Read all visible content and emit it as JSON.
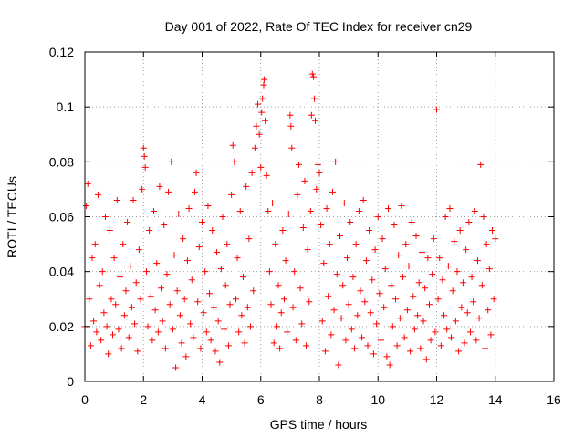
{
  "chart_data": {
    "type": "scatter",
    "title": "Day 001 of 2022, Rate Of TEC Index for receiver cn29",
    "xlabel": "GPS time / hours",
    "ylabel": "ROTI / TECUs",
    "xlim": [
      0,
      16
    ],
    "ylim": [
      0,
      0.12
    ],
    "x_ticks": [
      0,
      2,
      4,
      6,
      8,
      10,
      12,
      14,
      16
    ],
    "y_ticks": [
      0,
      0.02,
      0.04,
      0.06,
      0.08,
      0.1,
      0.12
    ],
    "x_tick_labels": [
      "0",
      "2",
      "4",
      "6",
      "8",
      "10",
      "12",
      "14",
      "16"
    ],
    "y_tick_labels": [
      "0",
      "0.02",
      "0.04",
      "0.06",
      "0.08",
      "0.1",
      "0.12"
    ],
    "grid": true,
    "marker": "+",
    "color": "#ff0000",
    "series": [
      {
        "name": "ROTI",
        "points": [
          [
            0.0,
            0.02
          ],
          [
            0.05,
            0.064
          ],
          [
            0.1,
            0.072
          ],
          [
            0.15,
            0.03
          ],
          [
            0.2,
            0.013
          ],
          [
            0.25,
            0.045
          ],
          [
            0.3,
            0.022
          ],
          [
            0.35,
            0.05
          ],
          [
            0.4,
            0.018
          ],
          [
            0.45,
            0.068
          ],
          [
            0.5,
            0.035
          ],
          [
            0.55,
            0.015
          ],
          [
            0.6,
            0.04
          ],
          [
            0.65,
            0.025
          ],
          [
            0.7,
            0.06
          ],
          [
            0.75,
            0.02
          ],
          [
            0.8,
            0.01
          ],
          [
            0.85,
            0.055
          ],
          [
            0.9,
            0.03
          ],
          [
            0.95,
            0.017
          ],
          [
            1.0,
            0.045
          ],
          [
            1.05,
            0.028
          ],
          [
            1.1,
            0.066
          ],
          [
            1.15,
            0.019
          ],
          [
            1.2,
            0.038
          ],
          [
            1.25,
            0.012
          ],
          [
            1.3,
            0.05
          ],
          [
            1.35,
            0.024
          ],
          [
            1.4,
            0.033
          ],
          [
            1.45,
            0.058
          ],
          [
            1.5,
            0.016
          ],
          [
            1.55,
            0.042
          ],
          [
            1.6,
            0.027
          ],
          [
            1.65,
            0.066
          ],
          [
            1.7,
            0.021
          ],
          [
            1.75,
            0.036
          ],
          [
            1.8,
            0.011
          ],
          [
            1.85,
            0.048
          ],
          [
            1.9,
            0.03
          ],
          [
            1.95,
            0.07
          ],
          [
            2.0,
            0.085
          ],
          [
            2.03,
            0.082
          ],
          [
            2.06,
            0.078
          ],
          [
            2.1,
            0.04
          ],
          [
            2.15,
            0.02
          ],
          [
            2.2,
            0.055
          ],
          [
            2.25,
            0.031
          ],
          [
            2.3,
            0.015
          ],
          [
            2.35,
            0.062
          ],
          [
            2.4,
            0.026
          ],
          [
            2.45,
            0.043
          ],
          [
            2.5,
            0.018
          ],
          [
            2.55,
            0.071
          ],
          [
            2.6,
            0.034
          ],
          [
            2.65,
            0.022
          ],
          [
            2.7,
            0.057
          ],
          [
            2.75,
            0.012
          ],
          [
            2.8,
            0.039
          ],
          [
            2.85,
            0.069
          ],
          [
            2.9,
            0.028
          ],
          [
            2.95,
            0.08
          ],
          [
            3.0,
            0.019
          ],
          [
            3.05,
            0.046
          ],
          [
            3.1,
            0.005
          ],
          [
            3.15,
            0.033
          ],
          [
            3.2,
            0.061
          ],
          [
            3.25,
            0.024
          ],
          [
            3.3,
            0.014
          ],
          [
            3.35,
            0.052
          ],
          [
            3.4,
            0.03
          ],
          [
            3.45,
            0.009
          ],
          [
            3.5,
            0.044
          ],
          [
            3.55,
            0.063
          ],
          [
            3.6,
            0.021
          ],
          [
            3.65,
            0.037
          ],
          [
            3.7,
            0.016
          ],
          [
            3.75,
            0.069
          ],
          [
            3.8,
            0.076
          ],
          [
            3.85,
            0.029
          ],
          [
            3.9,
            0.049
          ],
          [
            3.95,
            0.012
          ],
          [
            4.0,
            0.058
          ],
          [
            4.05,
            0.025
          ],
          [
            4.1,
            0.04
          ],
          [
            4.15,
            0.018
          ],
          [
            4.2,
            0.064
          ],
          [
            4.25,
            0.032
          ],
          [
            4.3,
            0.015
          ],
          [
            4.35,
            0.055
          ],
          [
            4.4,
            0.027
          ],
          [
            4.45,
            0.011
          ],
          [
            4.5,
            0.047
          ],
          [
            4.55,
            0.022
          ],
          [
            4.6,
            0.007
          ],
          [
            4.65,
            0.041
          ],
          [
            4.7,
            0.06
          ],
          [
            4.75,
            0.019
          ],
          [
            4.8,
            0.035
          ],
          [
            4.85,
            0.05
          ],
          [
            4.9,
            0.013
          ],
          [
            4.95,
            0.028
          ],
          [
            5.0,
            0.068
          ],
          [
            5.05,
            0.086
          ],
          [
            5.1,
            0.08
          ],
          [
            5.15,
            0.03
          ],
          [
            5.2,
            0.045
          ],
          [
            5.25,
            0.018
          ],
          [
            5.3,
            0.062
          ],
          [
            5.35,
            0.024
          ],
          [
            5.4,
            0.038
          ],
          [
            5.45,
            0.014
          ],
          [
            5.5,
            0.071
          ],
          [
            5.55,
            0.027
          ],
          [
            5.6,
            0.052
          ],
          [
            5.65,
            0.02
          ],
          [
            5.7,
            0.076
          ],
          [
            5.75,
            0.033
          ],
          [
            5.8,
            0.085
          ],
          [
            5.85,
            0.093
          ],
          [
            5.9,
            0.101
          ],
          [
            5.95,
            0.09
          ],
          [
            6.0,
            0.078
          ],
          [
            6.03,
            0.098
          ],
          [
            6.06,
            0.103
          ],
          [
            6.1,
            0.108
          ],
          [
            6.12,
            0.11
          ],
          [
            6.15,
            0.095
          ],
          [
            6.2,
            0.075
          ],
          [
            6.25,
            0.062
          ],
          [
            6.3,
            0.04
          ],
          [
            6.35,
            0.028
          ],
          [
            6.4,
            0.065
          ],
          [
            6.45,
            0.014
          ],
          [
            6.5,
            0.05
          ],
          [
            6.55,
            0.02
          ],
          [
            6.6,
            0.035
          ],
          [
            6.65,
            0.012
          ],
          [
            6.7,
            0.025
          ],
          [
            6.75,
            0.055
          ],
          [
            6.8,
            0.03
          ],
          [
            6.85,
            0.044
          ],
          [
            6.9,
            0.018
          ],
          [
            6.95,
            0.061
          ],
          [
            7.0,
            0.097
          ],
          [
            7.03,
            0.093
          ],
          [
            7.06,
            0.085
          ],
          [
            7.1,
            0.027
          ],
          [
            7.15,
            0.04
          ],
          [
            7.2,
            0.015
          ],
          [
            7.25,
            0.068
          ],
          [
            7.3,
            0.079
          ],
          [
            7.35,
            0.034
          ],
          [
            7.4,
            0.021
          ],
          [
            7.45,
            0.056
          ],
          [
            7.5,
            0.073
          ],
          [
            7.55,
            0.013
          ],
          [
            7.6,
            0.048
          ],
          [
            7.65,
            0.029
          ],
          [
            7.7,
            0.062
          ],
          [
            7.73,
            0.097
          ],
          [
            7.76,
            0.112
          ],
          [
            7.8,
            0.111
          ],
          [
            7.83,
            0.103
          ],
          [
            7.86,
            0.095
          ],
          [
            7.9,
            0.07
          ],
          [
            7.95,
            0.079
          ],
          [
            8.0,
            0.076
          ],
          [
            8.05,
            0.057
          ],
          [
            8.1,
            0.022
          ],
          [
            8.15,
            0.043
          ],
          [
            8.2,
            0.011
          ],
          [
            8.25,
            0.063
          ],
          [
            8.3,
            0.031
          ],
          [
            8.35,
            0.05
          ],
          [
            8.4,
            0.017
          ],
          [
            8.45,
            0.069
          ],
          [
            8.5,
            0.026
          ],
          [
            8.55,
            0.08
          ],
          [
            8.6,
            0.039
          ],
          [
            8.65,
            0.006
          ],
          [
            8.7,
            0.053
          ],
          [
            8.75,
            0.023
          ],
          [
            8.8,
            0.035
          ],
          [
            8.85,
            0.065
          ],
          [
            8.9,
            0.015
          ],
          [
            8.95,
            0.045
          ],
          [
            9.0,
            0.028
          ],
          [
            9.05,
            0.058
          ],
          [
            9.1,
            0.019
          ],
          [
            9.15,
            0.038
          ],
          [
            9.2,
            0.012
          ],
          [
            9.25,
            0.05
          ],
          [
            9.3,
            0.024
          ],
          [
            9.35,
            0.062
          ],
          [
            9.4,
            0.033
          ],
          [
            9.45,
            0.016
          ],
          [
            9.5,
            0.066
          ],
          [
            9.55,
            0.029
          ],
          [
            9.6,
            0.044
          ],
          [
            9.65,
            0.013
          ],
          [
            9.7,
            0.055
          ],
          [
            9.75,
            0.025
          ],
          [
            9.8,
            0.037
          ],
          [
            9.85,
            0.01
          ],
          [
            9.9,
            0.048
          ],
          [
            9.95,
            0.021
          ],
          [
            10.0,
            0.06
          ],
          [
            10.05,
            0.032
          ],
          [
            10.1,
            0.015
          ],
          [
            10.15,
            0.052
          ],
          [
            10.2,
            0.027
          ],
          [
            10.25,
            0.041
          ],
          [
            10.3,
            0.009
          ],
          [
            10.35,
            0.063
          ],
          [
            10.4,
            0.006
          ],
          [
            10.45,
            0.035
          ],
          [
            10.5,
            0.02
          ],
          [
            10.55,
            0.057
          ],
          [
            10.6,
            0.03
          ],
          [
            10.65,
            0.013
          ],
          [
            10.7,
            0.046
          ],
          [
            10.75,
            0.023
          ],
          [
            10.8,
            0.064
          ],
          [
            10.85,
            0.038
          ],
          [
            10.9,
            0.016
          ],
          [
            10.95,
            0.05
          ],
          [
            11.0,
            0.026
          ],
          [
            11.05,
            0.042
          ],
          [
            11.1,
            0.011
          ],
          [
            11.15,
            0.058
          ],
          [
            11.2,
            0.031
          ],
          [
            11.25,
            0.019
          ],
          [
            11.3,
            0.053
          ],
          [
            11.35,
            0.024
          ],
          [
            11.4,
            0.036
          ],
          [
            11.45,
            0.012
          ],
          [
            11.5,
            0.047
          ],
          [
            11.55,
            0.022
          ],
          [
            11.6,
            0.034
          ],
          [
            11.65,
            0.008
          ],
          [
            11.7,
            0.045
          ],
          [
            11.75,
            0.028
          ],
          [
            11.8,
            0.015
          ],
          [
            11.85,
            0.039
          ],
          [
            11.9,
            0.052
          ],
          [
            11.95,
            0.018
          ],
          [
            12.0,
            0.099
          ],
          [
            12.05,
            0.03
          ],
          [
            12.1,
            0.045
          ],
          [
            12.15,
            0.013
          ],
          [
            12.2,
            0.037
          ],
          [
            12.25,
            0.024
          ],
          [
            12.3,
            0.06
          ],
          [
            12.35,
            0.019
          ],
          [
            12.4,
            0.042
          ],
          [
            12.45,
            0.063
          ],
          [
            12.5,
            0.016
          ],
          [
            12.55,
            0.033
          ],
          [
            12.6,
            0.051
          ],
          [
            12.65,
            0.022
          ],
          [
            12.7,
            0.04
          ],
          [
            12.75,
            0.011
          ],
          [
            12.8,
            0.055
          ],
          [
            12.85,
            0.027
          ],
          [
            12.9,
            0.036
          ],
          [
            12.95,
            0.014
          ],
          [
            13.0,
            0.048
          ],
          [
            13.05,
            0.025
          ],
          [
            13.1,
            0.058
          ],
          [
            13.15,
            0.018
          ],
          [
            13.2,
            0.038
          ],
          [
            13.25,
            0.029
          ],
          [
            13.3,
            0.062
          ],
          [
            13.35,
            0.015
          ],
          [
            13.4,
            0.044
          ],
          [
            13.45,
            0.023
          ],
          [
            13.5,
            0.079
          ],
          [
            13.55,
            0.035
          ],
          [
            13.6,
            0.06
          ],
          [
            13.65,
            0.012
          ],
          [
            13.7,
            0.05
          ],
          [
            13.75,
            0.026
          ],
          [
            13.8,
            0.041
          ],
          [
            13.85,
            0.017
          ],
          [
            13.9,
            0.055
          ],
          [
            13.95,
            0.03
          ],
          [
            14.0,
            0.052
          ]
        ]
      }
    ]
  }
}
